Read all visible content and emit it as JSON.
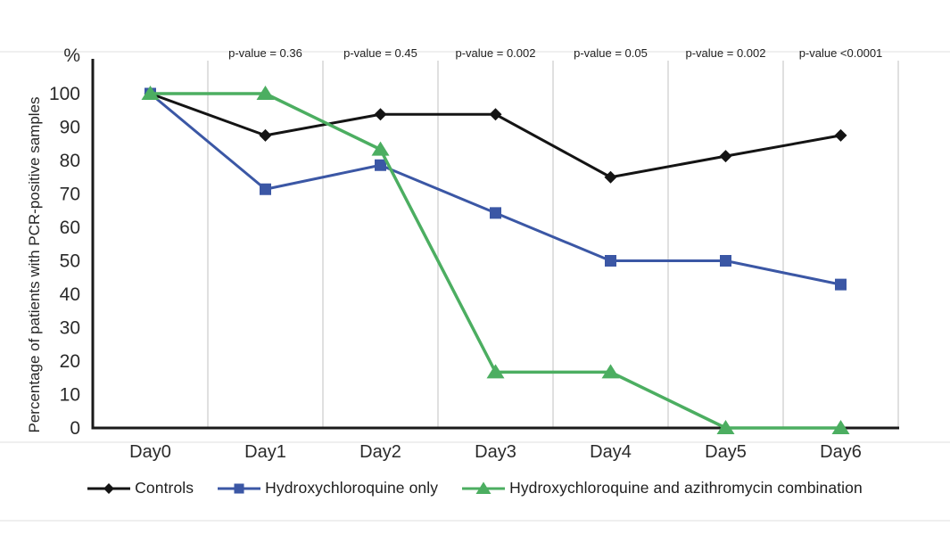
{
  "colors": {
    "grid": "#d8d8d8",
    "axis": "#1a1a1a",
    "text": "#2a2a2a",
    "annotation_text": "#222222"
  },
  "chart_data": {
    "type": "line",
    "title": "",
    "xlabel": "",
    "ylabel": "Percentage of patients with PCR-positive samples",
    "y_unit_label": "%",
    "categories": [
      "Day0",
      "Day1",
      "Day2",
      "Day3",
      "Day4",
      "Day5",
      "Day6"
    ],
    "y_ticks": [
      0,
      10,
      20,
      30,
      40,
      50,
      60,
      70,
      80,
      90,
      100
    ],
    "ylim": [
      0,
      100
    ],
    "grid": "vertical gridlines between categories, on",
    "legend_position": "bottom",
    "series": [
      {
        "name": "Controls",
        "color": "#141414",
        "marker": "diamond",
        "values": [
          100,
          87.5,
          93.8,
          93.8,
          75,
          81.3,
          87.5
        ]
      },
      {
        "name": "Hydroxychloroquine only",
        "color": "#3b57a5",
        "marker": "square",
        "values": [
          100,
          71.4,
          78.6,
          64.3,
          50,
          50,
          42.9
        ]
      },
      {
        "name": "Hydroxychloroquine and azithromycin combination",
        "color": "#4cae61",
        "marker": "triangle",
        "values": [
          100,
          100,
          83.3,
          16.7,
          16.7,
          0,
          0
        ]
      }
    ],
    "annotations": [
      {
        "category": "Day1",
        "text": "p-value = 0.36"
      },
      {
        "category": "Day2",
        "text": "p-value = 0.45"
      },
      {
        "category": "Day3",
        "text": "p-value = 0.002"
      },
      {
        "category": "Day4",
        "text": "p-value = 0.05"
      },
      {
        "category": "Day5",
        "text": "p-value = 0.002"
      },
      {
        "category": "Day6",
        "text": "p-value <0.0001"
      }
    ]
  }
}
